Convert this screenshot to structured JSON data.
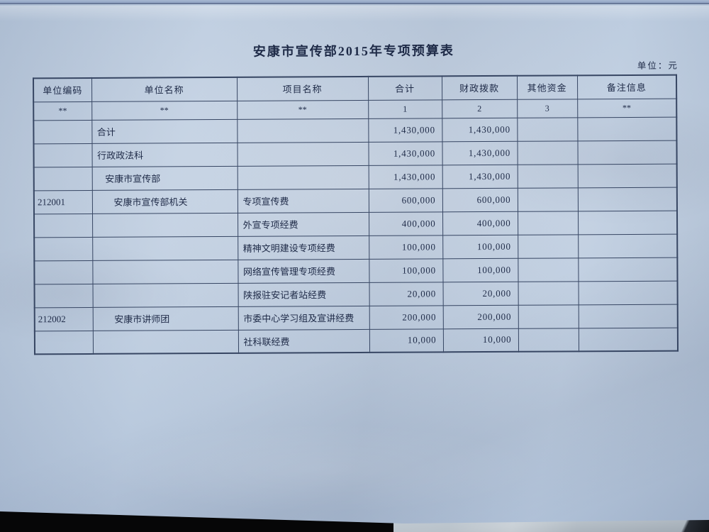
{
  "title": "安康市宣传部2015年专项预算表",
  "unit_note": "单位：元",
  "colors": {
    "paper": "#b6c7dc",
    "ink": "#1e2a47",
    "table_line": "#374663",
    "background": "#0a0b0d"
  },
  "table": {
    "headers": [
      "单位编码",
      "单位名称",
      "项目名称",
      "合计",
      "财政拨款",
      "其他资金",
      "备注信息"
    ],
    "subheaders": [
      "**",
      "**",
      "**",
      "1",
      "2",
      "3",
      "**"
    ],
    "rows": [
      {
        "code": "",
        "unit": "合计",
        "indent": 0,
        "project": "",
        "total": "1,430,000",
        "fiscal": "1,430,000",
        "other": "",
        "remark": ""
      },
      {
        "code": "",
        "unit": "行政政法科",
        "indent": 0,
        "project": "",
        "total": "1,430,000",
        "fiscal": "1,430,000",
        "other": "",
        "remark": ""
      },
      {
        "code": "",
        "unit": "安康市宣传部",
        "indent": 1,
        "project": "",
        "total": "1,430,000",
        "fiscal": "1,430,000",
        "other": "",
        "remark": ""
      },
      {
        "code": "212001",
        "unit": "安康市宣传部机关",
        "indent": 2,
        "project": "专项宣传费",
        "total": "600,000",
        "fiscal": "600,000",
        "other": "",
        "remark": ""
      },
      {
        "code": "",
        "unit": "",
        "indent": 0,
        "project": "外宣专项经费",
        "total": "400,000",
        "fiscal": "400,000",
        "other": "",
        "remark": ""
      },
      {
        "code": "",
        "unit": "",
        "indent": 0,
        "project": "精神文明建设专项经费",
        "total": "100,000",
        "fiscal": "100,000",
        "other": "",
        "remark": ""
      },
      {
        "code": "",
        "unit": "",
        "indent": 0,
        "project": "网络宣传管理专项经费",
        "total": "100,000",
        "fiscal": "100,000",
        "other": "",
        "remark": ""
      },
      {
        "code": "",
        "unit": "",
        "indent": 0,
        "project": "陕报驻安记者站经费",
        "total": "20,000",
        "fiscal": "20,000",
        "other": "",
        "remark": ""
      },
      {
        "code": "212002",
        "unit": "安康市讲师团",
        "indent": 2,
        "project": "市委中心学习组及宣讲经费",
        "total": "200,000",
        "fiscal": "200,000",
        "other": "",
        "remark": ""
      },
      {
        "code": "",
        "unit": "",
        "indent": 0,
        "project": "社科联经费",
        "total": "10,000",
        "fiscal": "10,000",
        "other": "",
        "remark": ""
      }
    ]
  }
}
